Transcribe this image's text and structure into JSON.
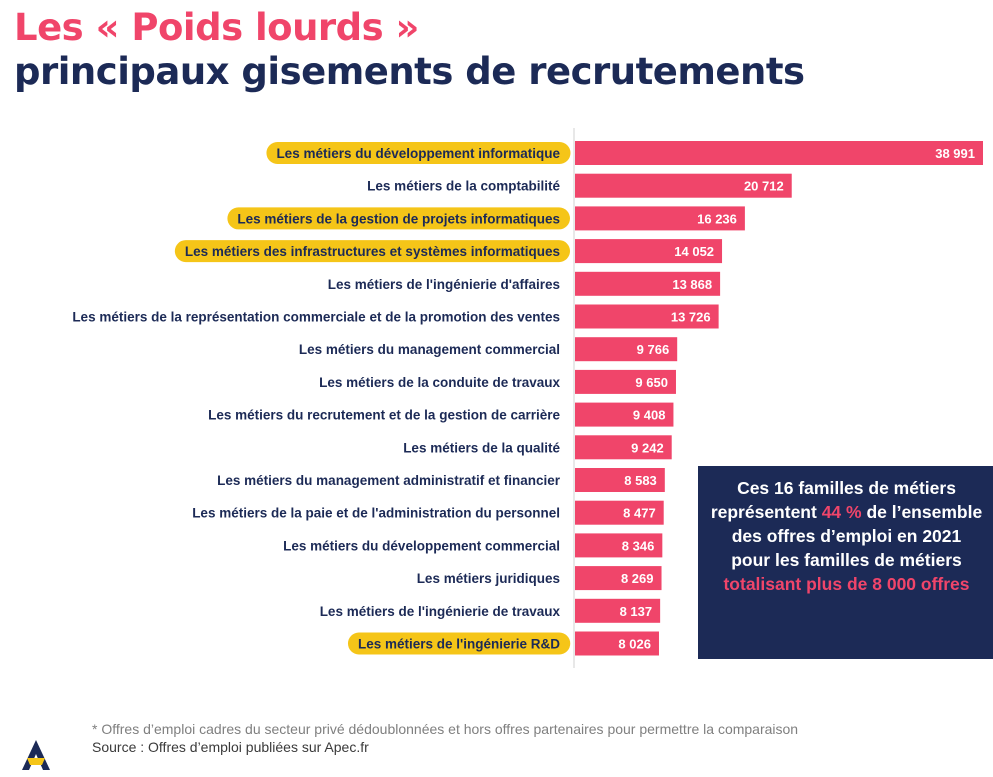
{
  "title": {
    "line1": "Les « Poids lourds »",
    "line2": "principaux gisements de recrutements"
  },
  "colors": {
    "bar": "#f0456a",
    "highlight": "#f5c518",
    "navy": "#1c2a56"
  },
  "chart_data": {
    "type": "bar",
    "orientation": "horizontal",
    "categories": [
      "Les métiers du développement informatique",
      "Les métiers de la comptabilité",
      "Les métiers de la gestion de projets informatiques",
      "Les métiers des infrastructures et systèmes informatiques",
      "Les métiers de l'ingénierie d'affaires",
      "Les métiers de la représentation commerciale et de la promotion des ventes",
      "Les métiers du management commercial",
      "Les métiers de la conduite de travaux",
      "Les métiers du recrutement et de la gestion de carrière",
      "Les métiers de la qualité",
      "Les métiers du management administratif et financier",
      "Les métiers de la paie et de l'administration du personnel",
      "Les métiers du développement commercial",
      "Les métiers juridiques",
      "Les métiers de l'ingénierie de travaux",
      "Les métiers de l'ingénierie R&D"
    ],
    "values": [
      38991,
      20712,
      16236,
      14052,
      13868,
      13726,
      9766,
      9650,
      9408,
      9242,
      8583,
      8477,
      8346,
      8269,
      8137,
      8026
    ],
    "value_labels": [
      "38 991",
      "20 712",
      "16 236",
      "14 052",
      "13 868",
      "13 726",
      "9 766",
      "9 650",
      "9 408",
      "9 242",
      "8 583",
      "8 477",
      "8 346",
      "8 269",
      "8 137",
      "8 026"
    ],
    "highlighted": [
      true,
      false,
      true,
      true,
      false,
      false,
      false,
      false,
      false,
      false,
      false,
      false,
      false,
      false,
      false,
      true
    ],
    "xlim": [
      0,
      38991
    ]
  },
  "callout": {
    "part1": "Ces 16 familles de métiers représentent ",
    "pct": "44 %",
    "part2": " de l’ensemble des offres d’emploi en 2021 pour les familles de métiers ",
    "emphasis": "totalisant plus de 8 000 offres"
  },
  "footnote": {
    "line1": "* Offres d’emploi cadres du secteur privé dédoublonnées et hors offres partenaires pour permettre la comparaison",
    "line2": "Source : Offres d’emploi publiées sur Apec.fr"
  }
}
